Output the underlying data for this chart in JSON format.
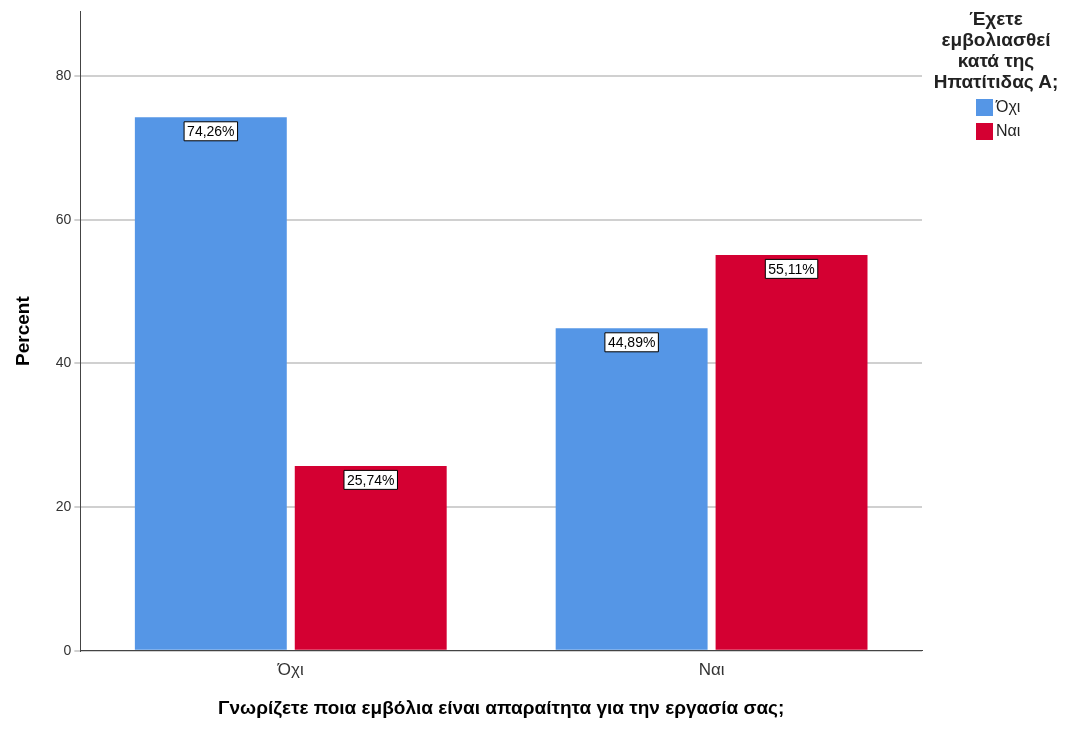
{
  "chart_data": {
    "type": "bar",
    "xlabel": "Γνωρίζετε ποια εμβόλια είναι απαραίτητα για την εργασία σας;",
    "ylabel": "Percent",
    "legend_title": "Έχετε εμβολιασθεί κατά της Ηπατίτιδας Α;",
    "categories": [
      "Όχι",
      "Ναι"
    ],
    "series": [
      {
        "name": "Όχι",
        "color": "#5596e6",
        "values": [
          74.26,
          44.89
        ],
        "value_labels": [
          "74,26%",
          "44,89%"
        ]
      },
      {
        "name": "Ναι",
        "color": "#d40032",
        "values": [
          25.74,
          55.11
        ],
        "value_labels": [
          "25,74%",
          "55,11%"
        ]
      }
    ],
    "ylim": [
      0,
      89
    ],
    "yticks": [
      0,
      20,
      40,
      60,
      80
    ],
    "grid": "y",
    "legend": "top right"
  }
}
